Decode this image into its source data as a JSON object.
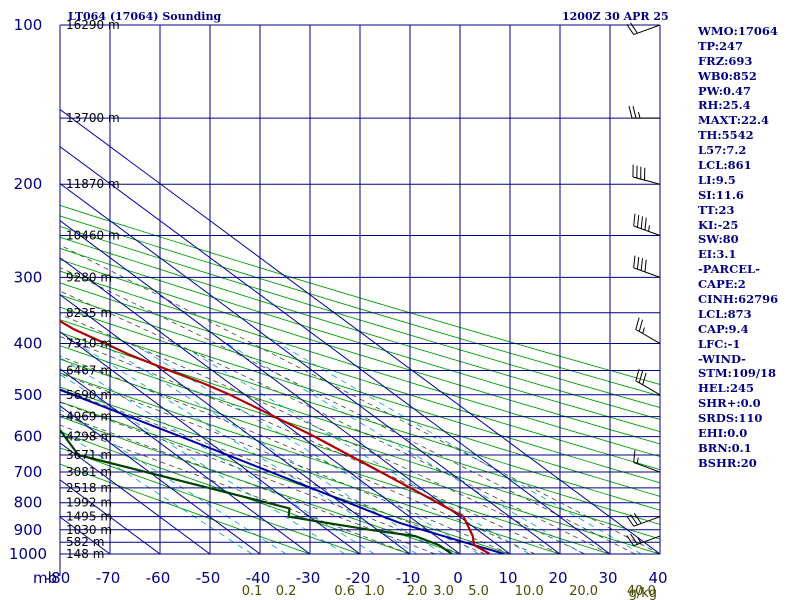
{
  "header": {
    "station_title": "LT064 (17064) Sounding",
    "valid_time": "1200Z 30 APR 25"
  },
  "indices": [
    "WMO:17064",
    "TP:247",
    "FRZ:693",
    "WB0:852",
    "PW:0.47",
    "RH:25.4",
    "MAXT:22.4",
    "TH:5542",
    "L57:7.2",
    "LCL:861",
    "LI:9.5",
    "SI:11.6",
    "TT:23",
    "KI:-25",
    "SW:80",
    "EI:3.1",
    "-PARCEL-",
    "CAPE:2",
    "CINH:62796",
    "LCL:873",
    "CAP:9.4",
    "LFC:-1",
    "-WIND-",
    "STM:109/18",
    "HEL:245",
    "SHR+:0.0",
    "SRDS:110",
    "EHI:0.0",
    "BRN:0.1",
    "BSHR:20"
  ],
  "colors": {
    "axis": "#000080",
    "isotherm": "#0000a0",
    "dry_adiabat": "#00a000",
    "moist_adiabat": "#404040",
    "mixing_ratio": "#00a0c8",
    "temperature": "#b00000",
    "dewpoint": "#004000",
    "parcel": "#0000a0",
    "wind": "#000000"
  },
  "chart_data": {
    "type": "skew-t",
    "pressure_unit": "mb",
    "ylim": [
      1000,
      100
    ],
    "xlim": [
      -80,
      40
    ],
    "pressure_levels": [
      100,
      200,
      300,
      400,
      500,
      600,
      700,
      800,
      900,
      1000
    ],
    "pressure_tick_labels": [
      "100",
      "200",
      "300",
      "400",
      "500",
      "600",
      "700",
      "800",
      "900",
      "1000"
    ],
    "pressure_unit_label": "mb",
    "temperature_ticks": [
      -80,
      -70,
      -60,
      -50,
      -40,
      -30,
      -20,
      -10,
      0,
      10,
      20,
      30,
      40
    ],
    "temperature_tick_labels": [
      "-80",
      "-70",
      "-60",
      "-50",
      "-40",
      "-30",
      "-20",
      "-10",
      "0",
      "10",
      "20",
      "30",
      "40"
    ],
    "height_labels": [
      {
        "p": 100,
        "label": "16290 m"
      },
      {
        "p": 150,
        "label": "13700 m"
      },
      {
        "p": 200,
        "label": "11870 m"
      },
      {
        "p": 250,
        "label": "10460 m"
      },
      {
        "p": 300,
        "label": "9280 m"
      },
      {
        "p": 350,
        "label": "8235 m"
      },
      {
        "p": 400,
        "label": "7310 m"
      },
      {
        "p": 450,
        "label": "6467 m"
      },
      {
        "p": 500,
        "label": "5690 m"
      },
      {
        "p": 550,
        "label": "4969 m"
      },
      {
        "p": 600,
        "label": "4298 m"
      },
      {
        "p": 650,
        "label": "3671 m"
      },
      {
        "p": 700,
        "label": "3081 m"
      },
      {
        "p": 750,
        "label": "2518 m"
      },
      {
        "p": 800,
        "label": "1992 m"
      },
      {
        "p": 850,
        "label": "1495 m"
      },
      {
        "p": 900,
        "label": "1030 m"
      },
      {
        "p": 950,
        "label": "582 m"
      },
      {
        "p": 1000,
        "label": "148 m"
      }
    ],
    "mixing_ratio_labels": [
      "0.1",
      "0.2",
      "0.6",
      "1.0",
      "2.0",
      "3.0",
      "5.0",
      "10.0",
      "20.0",
      "40.0"
    ],
    "mixing_ratio_unit": "g/kg",
    "temperature_profile": [
      {
        "p": 1000,
        "t": 6.0
      },
      {
        "p": 962,
        "t": 5.2
      },
      {
        "p": 925,
        "t": 7.4
      },
      {
        "p": 850,
        "t": 10.8
      },
      {
        "p": 700,
        "t": 6.3
      },
      {
        "p": 600,
        "t": 2.6
      },
      {
        "p": 550,
        "t": 0.0
      },
      {
        "p": 500,
        "t": -3.0
      },
      {
        "p": 475,
        "t": -5.3
      },
      {
        "p": 450,
        "t": -8.6
      },
      {
        "p": 420,
        "t": -12.3
      },
      {
        "p": 400,
        "t": -14.1
      },
      {
        "p": 375,
        "t": -16.6
      },
      {
        "p": 350,
        "t": -17.7
      },
      {
        "p": 300,
        "t": -27.3
      },
      {
        "p": 250,
        "t": -38.9
      },
      {
        "p": 200,
        "t": -41.3
      },
      {
        "p": 150,
        "t": -48.7
      },
      {
        "p": 100,
        "t": -57.5
      }
    ],
    "dewpoint_profile": [
      {
        "p": 1000,
        "t": -1.6
      },
      {
        "p": 962,
        "t": -1.8
      },
      {
        "p": 925,
        "t": -4.1
      },
      {
        "p": 900,
        "t": -11.5
      },
      {
        "p": 850,
        "t": -24.2
      },
      {
        "p": 820,
        "t": -21.8
      },
      {
        "p": 650,
        "t": -49.6
      },
      {
        "p": 550,
        "t": -44.9
      },
      {
        "p": 500,
        "t": -40.4
      },
      {
        "p": 470,
        "t": -37.0
      },
      {
        "p": 440,
        "t": -45.4
      },
      {
        "p": 400,
        "t": -47.4
      },
      {
        "p": 330,
        "t": -52.8
      },
      {
        "p": 300,
        "t": -56.4
      },
      {
        "p": 250,
        "t": -64.6
      },
      {
        "p": 100,
        "t": -74.7
      }
    ],
    "parcel_profile": [
      {
        "p": 1000,
        "t": 8.9
      },
      {
        "p": 950,
        "t": 4.0
      },
      {
        "p": 900,
        "t": -1.0
      },
      {
        "p": 873,
        "t": -3.7
      },
      {
        "p": 850,
        "t": -5.2
      },
      {
        "p": 800,
        "t": -8.5
      },
      {
        "p": 700,
        "t": -15.7
      },
      {
        "p": 600,
        "t": -24.2
      },
      {
        "p": 500,
        "t": -34.4
      },
      {
        "p": 400,
        "t": -47.3
      },
      {
        "p": 300,
        "t": -63.0
      },
      {
        "p": 250,
        "t": -72.0
      },
      {
        "p": 200,
        "t": -82.0
      }
    ],
    "wind_barbs": [
      {
        "p": 925,
        "dir": 250,
        "kt": 25
      },
      {
        "p": 850,
        "dir": 250,
        "kt": 30
      },
      {
        "p": 700,
        "dir": 290,
        "kt": 15
      },
      {
        "p": 500,
        "dir": 300,
        "kt": 30
      },
      {
        "p": 400,
        "dir": 300,
        "kt": 25
      },
      {
        "p": 300,
        "dir": 290,
        "kt": 40
      },
      {
        "p": 250,
        "dir": 290,
        "kt": 45
      },
      {
        "p": 200,
        "dir": 285,
        "kt": 40
      },
      {
        "p": 150,
        "dir": 270,
        "kt": 25
      },
      {
        "p": 100,
        "dir": 250,
        "kt": 20
      }
    ],
    "grid": true
  }
}
